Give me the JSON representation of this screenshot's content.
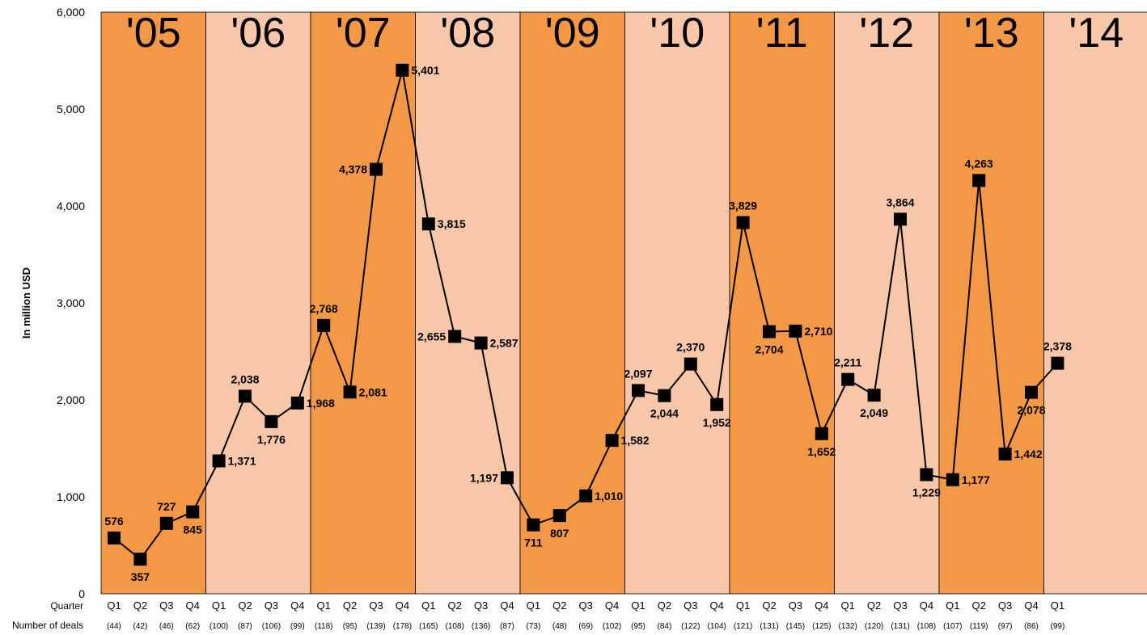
{
  "chart_data": {
    "type": "line",
    "title": "",
    "ylabel": "In million USD",
    "ylim": [
      0,
      6000
    ],
    "yticks": [
      "0",
      "1,000",
      "2,000",
      "3,000",
      "4,000",
      "5,000",
      "6,000"
    ],
    "grid": false,
    "colors": {
      "band_dark": "#f39847",
      "band_light": "#f8c6a8",
      "line": "#000000"
    },
    "years": [
      "'05",
      "'06",
      "'07",
      "'08",
      "'09",
      "'10",
      "'11",
      "'12",
      "'13",
      "'14"
    ],
    "row_labels": {
      "quarter": "Quarter",
      "deals": "Number of deals"
    },
    "x": [
      "Q1",
      "Q2",
      "Q3",
      "Q4",
      "Q1",
      "Q2",
      "Q3",
      "Q4",
      "Q1",
      "Q2",
      "Q3",
      "Q4",
      "Q1",
      "Q2",
      "Q3",
      "Q4",
      "Q1",
      "Q2",
      "Q3",
      "Q4",
      "Q1",
      "Q2",
      "Q3",
      "Q4",
      "Q1",
      "Q2",
      "Q3",
      "Q4",
      "Q1",
      "Q2",
      "Q3",
      "Q4",
      "Q1",
      "Q2",
      "Q3",
      "Q4",
      "Q1"
    ],
    "deals": [
      "(44)",
      "(42)",
      "(46)",
      "(62)",
      "(100)",
      "(87)",
      "(106)",
      "(99)",
      "(118)",
      "(95)",
      "(139)",
      "(178)",
      "(165)",
      "(108)",
      "(136)",
      "(87)",
      "(73)",
      "(48)",
      "(69)",
      "(102)",
      "(95)",
      "(84)",
      "(122)",
      "(104)",
      "(121)",
      "(131)",
      "(145)",
      "(125)",
      "(132)",
      "(120)",
      "(131)",
      "(108)",
      "(107)",
      "(119)",
      "(97)",
      "(86)",
      "(99)"
    ],
    "values": [
      576,
      357,
      727,
      845,
      1371,
      2038,
      1776,
      1968,
      2768,
      2081,
      4378,
      5401,
      3815,
      2655,
      2587,
      1197,
      711,
      807,
      1010,
      1582,
      2097,
      2044,
      2370,
      1952,
      3829,
      2704,
      2710,
      1652,
      2211,
      2049,
      3864,
      1229,
      1177,
      4263,
      1442,
      2078,
      2378
    ],
    "value_labels": [
      "576",
      "357",
      "727",
      "845",
      "1,371",
      "2,038",
      "1,776",
      "1,968",
      "2,768",
      "2,081",
      "4,378",
      "5,401",
      "3,815",
      "2,655",
      "2,587",
      "1,197",
      "711",
      "807",
      "1,010",
      "1,582",
      "2,097",
      "2,044",
      "2,370",
      "1,952",
      "3,829",
      "2,704",
      "2,710",
      "1,652",
      "2,211",
      "2,049",
      "3,864",
      "1,229",
      "1,177",
      "4,263",
      "1,442",
      "2,078",
      "2,378"
    ]
  }
}
